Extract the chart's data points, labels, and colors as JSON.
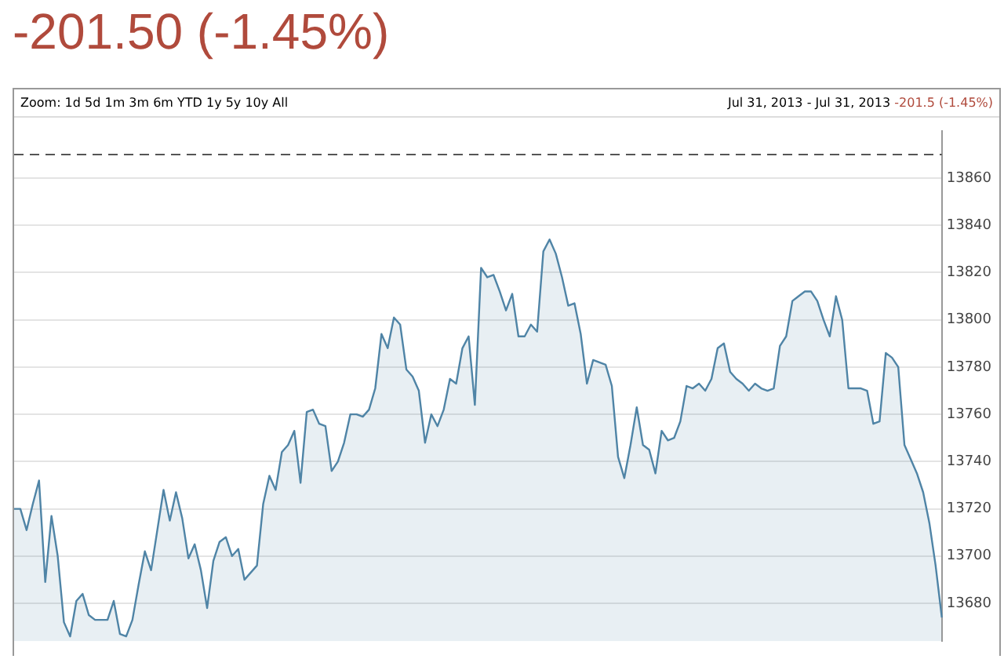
{
  "chart_data": {
    "type": "area",
    "title": "-201.50 (-1.45%)",
    "annotations": [
      "Zoom: 1d 5d 1m 3m 6m YTD 1y 5y 10y All",
      "Jul 31, 2013 - Jul 31, 2013",
      "-201.5 (-1.45%)"
    ],
    "categories": [
      null,
      null,
      null,
      null,
      null,
      null,
      null,
      null,
      null,
      null,
      null,
      null,
      null,
      null,
      null,
      null,
      null,
      null,
      null,
      null,
      null,
      null,
      null,
      null,
      null,
      null,
      null,
      null,
      null,
      null,
      null,
      null,
      null,
      null,
      null,
      null,
      null,
      null,
      null,
      null,
      null,
      null,
      null,
      null,
      null,
      null,
      null,
      null,
      null,
      null,
      null,
      null,
      null,
      null,
      null,
      null,
      null,
      null,
      null,
      null,
      null,
      null,
      null,
      null,
      null,
      null,
      null,
      null,
      null,
      null,
      null,
      null,
      null,
      null,
      null,
      null,
      null,
      null,
      null,
      null,
      null,
      null,
      null,
      null,
      null,
      null,
      null,
      null,
      null,
      null,
      null,
      null,
      null,
      null,
      null,
      null,
      null,
      null,
      null,
      null,
      null,
      null,
      null,
      null,
      null,
      null,
      null,
      null,
      null,
      null,
      null,
      null,
      null,
      null,
      null,
      null,
      null,
      null,
      null,
      null,
      null,
      null,
      null,
      null,
      null,
      null,
      null,
      null,
      null,
      null,
      null,
      null,
      null,
      null,
      null,
      null,
      null,
      null,
      null,
      null,
      null,
      null,
      null,
      null,
      null,
      null,
      null,
      null,
      null,
      null
    ],
    "series": [
      {
        "color": "#4f84a6",
        "values": [
          13720,
          13720,
          13711,
          13722,
          13732,
          13689,
          13717,
          13700,
          13672,
          13666,
          13681,
          13684,
          13675,
          13673,
          13673,
          13673,
          13681,
          13667,
          13666,
          13673,
          13688,
          13702,
          13694,
          13711,
          13728,
          13715,
          13727,
          13716,
          13699,
          13705,
          13694,
          13678,
          13698,
          13706,
          13708,
          13700,
          13703,
          13690,
          13693,
          13696,
          13722,
          13734,
          13728,
          13744,
          13747,
          13753,
          13731,
          13761,
          13762,
          13756,
          13755,
          13736,
          13740,
          13748,
          13760,
          13760,
          13759,
          13762,
          13771,
          13794,
          13788,
          13801,
          13798,
          13779,
          13776,
          13770,
          13748,
          13760,
          13755,
          13762,
          13775,
          13773,
          13788,
          13793,
          13764,
          13822,
          13818,
          13819,
          13812,
          13804,
          13811,
          13793,
          13793,
          13798,
          13795,
          13829,
          13834,
          13828,
          13818,
          13806,
          13807,
          13794,
          13773,
          13783,
          13782,
          13781,
          13772,
          13742,
          13733,
          13747,
          13763,
          13747,
          13745,
          13735,
          13753,
          13749,
          13750,
          13757,
          13772,
          13771,
          13773,
          13770,
          13775,
          13788,
          13790,
          13778,
          13775,
          13773,
          13770,
          13773,
          13771,
          13770,
          13771,
          13789,
          13793,
          13808,
          13810,
          13812,
          13812,
          13808,
          13800,
          13793,
          13810,
          13800,
          13771,
          13771,
          13771,
          13770,
          13756,
          13757,
          13786,
          13784,
          13780,
          13747,
          13741,
          13735,
          13727,
          13714,
          13696,
          13674
        ]
      }
    ],
    "ylim": [
      13664,
      13880
    ],
    "yticks": [
      13680,
      13700,
      13720,
      13740,
      13760,
      13780,
      13800,
      13820,
      13840,
      13860
    ],
    "grid": "y",
    "legend": false,
    "ref_lines": [
      {
        "axis": "y",
        "value": 13870,
        "color": "#555555",
        "line_style": "dashed"
      }
    ]
  }
}
